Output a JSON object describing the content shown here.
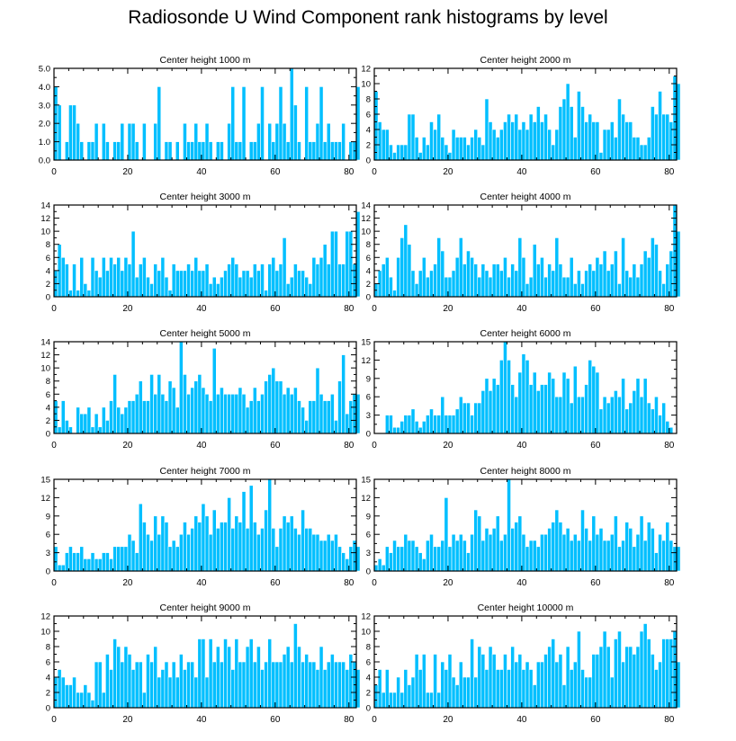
{
  "title": "Radiosonde U Wind Component rank histograms by level",
  "colors": {
    "bar": "#00BFFF",
    "bar_edge": "#ffffff",
    "axis": "#000000"
  },
  "chart_data": [
    {
      "type": "bar",
      "title": "Center height 1000 m",
      "xlim": [
        0,
        82
      ],
      "ylim": [
        0,
        5
      ],
      "yticks": [
        0,
        1,
        2,
        3,
        4,
        5
      ],
      "ytick_labels": [
        "0.0",
        "1.0",
        "2.0",
        "3.0",
        "4.0",
        "5.0"
      ],
      "xticks": [
        0,
        20,
        40,
        60,
        80
      ],
      "values": [
        4,
        3,
        0,
        1,
        3,
        3,
        2,
        1,
        0,
        1,
        1,
        2,
        0,
        2,
        1,
        0,
        1,
        1,
        2,
        0,
        2,
        2,
        1,
        0,
        2,
        0,
        0,
        2,
        4,
        0,
        1,
        1,
        0,
        1,
        0,
        2,
        1,
        1,
        2,
        1,
        1,
        2,
        1,
        0,
        1,
        1,
        0,
        2,
        4,
        1,
        1,
        4,
        0,
        1,
        1,
        2,
        4,
        0,
        2,
        1,
        2,
        4,
        2,
        1,
        5,
        3,
        1,
        0,
        4,
        1,
        1,
        2,
        4,
        1,
        2,
        1,
        1,
        1,
        2,
        0,
        1,
        1,
        4
      ]
    },
    {
      "type": "bar",
      "title": "Center height 2000 m",
      "xlim": [
        0,
        82
      ],
      "ylim": [
        0,
        12
      ],
      "yticks": [
        0,
        2,
        4,
        6,
        8,
        10,
        12
      ],
      "ytick_labels": [
        "0",
        "2",
        "4",
        "6",
        "8",
        "10",
        "12"
      ],
      "xticks": [
        0,
        20,
        40,
        60,
        80
      ],
      "values": [
        9,
        5,
        4,
        4,
        2,
        1,
        2,
        2,
        2,
        6,
        6,
        3,
        1,
        3,
        2,
        5,
        4,
        6,
        3,
        2,
        1,
        4,
        3,
        3,
        3,
        2,
        3,
        4,
        3,
        2,
        8,
        5,
        4,
        3,
        4,
        5,
        6,
        5,
        6,
        4,
        5,
        4,
        6,
        5,
        7,
        5,
        6,
        4,
        2,
        4,
        7,
        8,
        10,
        7,
        3,
        9,
        7,
        5,
        6,
        5,
        5,
        1,
        4,
        4,
        5,
        3,
        8,
        6,
        5,
        5,
        3,
        3,
        2,
        2,
        3,
        7,
        6,
        9,
        6,
        6,
        5,
        11,
        10
      ]
    },
    {
      "type": "bar",
      "title": "Center height 3000 m",
      "xlim": [
        0,
        82
      ],
      "ylim": [
        0,
        14
      ],
      "yticks": [
        0,
        2,
        4,
        6,
        8,
        10,
        12,
        14
      ],
      "ytick_labels": [
        "0",
        "2",
        "4",
        "6",
        "8",
        "10",
        "12",
        "14"
      ],
      "xticks": [
        0,
        20,
        40,
        60,
        80
      ],
      "values": [
        4,
        8,
        6,
        5,
        1,
        5,
        1,
        6,
        2,
        1,
        6,
        4,
        3,
        6,
        4,
        6,
        5,
        6,
        4,
        6,
        5,
        10,
        3,
        5,
        6,
        3,
        2,
        5,
        4,
        6,
        3,
        1,
        5,
        4,
        4,
        4,
        5,
        4,
        6,
        4,
        4,
        5,
        2,
        3,
        2,
        3,
        4,
        5,
        6,
        5,
        3,
        4,
        4,
        3,
        5,
        4,
        5,
        1,
        5,
        6,
        4,
        5,
        9,
        2,
        3,
        5,
        4,
        4,
        3,
        2,
        6,
        5,
        6,
        8,
        5,
        10,
        10,
        5,
        5,
        10,
        10,
        5,
        13
      ]
    },
    {
      "type": "bar",
      "title": "Center height 4000 m",
      "xlim": [
        0,
        82
      ],
      "ylim": [
        0,
        14
      ],
      "yticks": [
        0,
        2,
        4,
        6,
        8,
        10,
        12,
        14
      ],
      "ytick_labels": [
        "0",
        "2",
        "4",
        "6",
        "8",
        "10",
        "12",
        "14"
      ],
      "xticks": [
        0,
        20,
        40,
        60,
        80
      ],
      "values": [
        2,
        4,
        5,
        6,
        3,
        1,
        6,
        9,
        11,
        8,
        4,
        2,
        4,
        6,
        3,
        4,
        5,
        9,
        7,
        3,
        3,
        4,
        6,
        9,
        5,
        7,
        6,
        5,
        3,
        5,
        4,
        3,
        5,
        5,
        4,
        6,
        3,
        5,
        4,
        9,
        6,
        2,
        3,
        8,
        5,
        6,
        3,
        5,
        4,
        9,
        5,
        3,
        3,
        6,
        2,
        4,
        2,
        4,
        5,
        4,
        6,
        5,
        7,
        4,
        5,
        7,
        2,
        9,
        4,
        3,
        5,
        3,
        5,
        7,
        6,
        9,
        8,
        4,
        2,
        5,
        7,
        14,
        10
      ]
    },
    {
      "type": "bar",
      "title": "Center height 5000 m",
      "xlim": [
        0,
        82
      ],
      "ylim": [
        0,
        14
      ],
      "yticks": [
        0,
        2,
        4,
        6,
        8,
        10,
        12,
        14
      ],
      "ytick_labels": [
        "0",
        "2",
        "4",
        "6",
        "8",
        "10",
        "12",
        "14"
      ],
      "xticks": [
        0,
        20,
        40,
        60,
        80
      ],
      "values": [
        5,
        1,
        5,
        2,
        1,
        0,
        4,
        3,
        3,
        4,
        1,
        3,
        1,
        4,
        2,
        5,
        9,
        4,
        3,
        4,
        5,
        5,
        6,
        8,
        5,
        5,
        9,
        6,
        9,
        6,
        5,
        8,
        7,
        4,
        14,
        9,
        6,
        7,
        8,
        9,
        7,
        6,
        5,
        13,
        6,
        7,
        6,
        6,
        6,
        6,
        7,
        6,
        4,
        5,
        7,
        5,
        6,
        8,
        9,
        10,
        8,
        8,
        6,
        7,
        6,
        7,
        5,
        4,
        2,
        5,
        5,
        10,
        6,
        5,
        5,
        6,
        2,
        8,
        12,
        3,
        5,
        6,
        6
      ]
    },
    {
      "type": "bar",
      "title": "Center height 6000 m",
      "xlim": [
        0,
        82
      ],
      "ylim": [
        0,
        15
      ],
      "yticks": [
        0,
        3,
        6,
        9,
        12,
        15
      ],
      "ytick_labels": [
        "0",
        "3",
        "6",
        "9",
        "12",
        "15"
      ],
      "xticks": [
        0,
        20,
        40,
        60,
        80
      ],
      "values": [
        0,
        0,
        0,
        3,
        3,
        1,
        1,
        2,
        3,
        3,
        4,
        2,
        1,
        2,
        3,
        4,
        3,
        3,
        6,
        3,
        3,
        3,
        4,
        6,
        5,
        5,
        3,
        5,
        5,
        7,
        9,
        7,
        9,
        8,
        12,
        15,
        12,
        8,
        6,
        10,
        13,
        12,
        8,
        10,
        7,
        8,
        8,
        10,
        9,
        6,
        6,
        10,
        9,
        5,
        11,
        6,
        6,
        8,
        12,
        11,
        10,
        4,
        6,
        5,
        6,
        7,
        6,
        9,
        4,
        5,
        7,
        9,
        6,
        9,
        5,
        4,
        6,
        3,
        5,
        2,
        1,
        0,
        0
      ]
    },
    {
      "type": "bar",
      "title": "Center height 7000 m",
      "xlim": [
        0,
        82
      ],
      "ylim": [
        0,
        15
      ],
      "yticks": [
        0,
        3,
        6,
        9,
        12,
        15
      ],
      "ytick_labels": [
        "0",
        "3",
        "6",
        "9",
        "12",
        "15"
      ],
      "xticks": [
        0,
        20,
        40,
        60,
        80
      ],
      "values": [
        4,
        1,
        1,
        3,
        4,
        3,
        3,
        4,
        2,
        2,
        3,
        2,
        2,
        3,
        3,
        2,
        4,
        4,
        4,
        4,
        6,
        5,
        3,
        11,
        8,
        6,
        5,
        9,
        6,
        9,
        8,
        4,
        5,
        4,
        6,
        8,
        6,
        7,
        9,
        8,
        11,
        9,
        6,
        10,
        7,
        8,
        8,
        12,
        7,
        9,
        8,
        13,
        7,
        14,
        8,
        6,
        7,
        10,
        15,
        7,
        4,
        7,
        9,
        8,
        9,
        7,
        6,
        10,
        7,
        7,
        6,
        6,
        5,
        5,
        6,
        5,
        6,
        4,
        3,
        2,
        4,
        5,
        4
      ]
    },
    {
      "type": "bar",
      "title": "Center height 8000 m",
      "xlim": [
        0,
        82
      ],
      "ylim": [
        0,
        15
      ],
      "yticks": [
        0,
        3,
        6,
        9,
        12,
        15
      ],
      "ytick_labels": [
        "0",
        "3",
        "6",
        "9",
        "12",
        "15"
      ],
      "xticks": [
        0,
        20,
        40,
        60,
        80
      ],
      "values": [
        1,
        2,
        1,
        4,
        3,
        5,
        4,
        4,
        6,
        5,
        5,
        4,
        3,
        2,
        5,
        6,
        4,
        4,
        5,
        12,
        4,
        6,
        5,
        6,
        5,
        3,
        6,
        10,
        9,
        5,
        7,
        6,
        7,
        9,
        5,
        6,
        15,
        7,
        8,
        9,
        6,
        4,
        5,
        5,
        4,
        6,
        6,
        7,
        8,
        10,
        8,
        6,
        7,
        5,
        6,
        5,
        10,
        7,
        5,
        9,
        6,
        7,
        5,
        5,
        6,
        9,
        4,
        5,
        8,
        7,
        4,
        6,
        9,
        5,
        8,
        7,
        3,
        6,
        5,
        8,
        5,
        4,
        4
      ]
    },
    {
      "type": "bar",
      "title": "Center height 9000 m",
      "xlim": [
        0,
        82
      ],
      "ylim": [
        0,
        12
      ],
      "yticks": [
        0,
        2,
        4,
        6,
        8,
        10,
        12
      ],
      "ytick_labels": [
        "0",
        "2",
        "4",
        "6",
        "8",
        "10",
        "12"
      ],
      "xticks": [
        0,
        20,
        40,
        60,
        80
      ],
      "values": [
        4,
        5,
        4,
        3,
        3,
        4,
        2,
        2,
        3,
        2,
        1,
        6,
        6,
        2,
        7,
        5,
        9,
        8,
        6,
        8,
        7,
        5,
        6,
        6,
        2,
        7,
        6,
        8,
        4,
        5,
        6,
        4,
        6,
        4,
        7,
        5,
        6,
        6,
        4,
        9,
        9,
        4,
        9,
        6,
        8,
        6,
        9,
        8,
        5,
        9,
        6,
        6,
        8,
        9,
        6,
        8,
        5,
        6,
        9,
        6,
        6,
        6,
        7,
        8,
        6,
        11,
        8,
        6,
        7,
        6,
        6,
        5,
        8,
        5,
        6,
        7,
        6,
        6,
        6,
        5,
        7,
        6,
        5
      ]
    },
    {
      "type": "bar",
      "title": "Center height 10000 m",
      "xlim": [
        0,
        82
      ],
      "ylim": [
        0,
        12
      ],
      "yticks": [
        0,
        2,
        4,
        6,
        8,
        10,
        12
      ],
      "ytick_labels": [
        "0",
        "2",
        "4",
        "6",
        "8",
        "10",
        "12"
      ],
      "xticks": [
        0,
        20,
        40,
        60,
        80
      ],
      "values": [
        3,
        5,
        2,
        5,
        2,
        2,
        4,
        2,
        5,
        3,
        4,
        7,
        5,
        7,
        2,
        2,
        7,
        2,
        6,
        5,
        7,
        4,
        3,
        6,
        4,
        4,
        9,
        4,
        8,
        7,
        5,
        8,
        7,
        5,
        5,
        7,
        5,
        8,
        6,
        7,
        5,
        6,
        5,
        3,
        6,
        6,
        7,
        8,
        9,
        6,
        7,
        3,
        8,
        5,
        6,
        10,
        5,
        4,
        4,
        7,
        7,
        8,
        10,
        8,
        4,
        9,
        10,
        6,
        8,
        8,
        7,
        8,
        10,
        11,
        9,
        7,
        5,
        6,
        9,
        9,
        9,
        10,
        6
      ]
    }
  ]
}
